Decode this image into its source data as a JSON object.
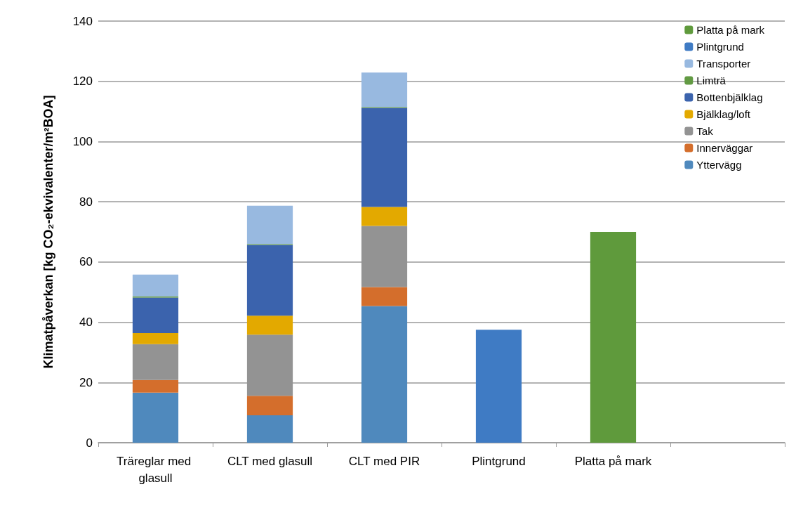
{
  "chart_data": {
    "type": "bar",
    "ylabel": "Klimatpåverkan [kg CO₂-ekvivalenter/m²BOA]",
    "categories": [
      "Träreglar med glasull",
      "CLT med glasull",
      "CLT med PIR",
      "Plintgrund",
      "Platta på mark",
      null
    ],
    "stacked": true,
    "ylim": [
      0,
      140
    ],
    "yticks": [
      0,
      20,
      40,
      60,
      80,
      100,
      120,
      140
    ],
    "grid": "y",
    "legend": "top right",
    "series": [
      {
        "name": "Yttervägg",
        "color": "#4f89bd",
        "values": [
          16.6,
          9.1,
          45.4,
          null,
          null,
          null
        ]
      },
      {
        "name": "Innerväggar",
        "color": "#d46e2c",
        "values": [
          4.2,
          6.5,
          6.3,
          null,
          null,
          null
        ]
      },
      {
        "name": "Tak",
        "color": "#939393",
        "values": [
          11.9,
          20.3,
          20.3,
          null,
          null,
          null
        ]
      },
      {
        "name": "Bjälklag/loft",
        "color": "#e3a900",
        "values": [
          3.7,
          6.3,
          6.3,
          null,
          null,
          null
        ]
      },
      {
        "name": "Bottenbjälklag",
        "color": "#3b63ad",
        "values": [
          11.8,
          23.5,
          32.9,
          null,
          null,
          null
        ]
      },
      {
        "name": "Limträ",
        "color": "#629a43",
        "values": [
          0.4,
          0.3,
          0.3,
          null,
          null,
          null
        ]
      },
      {
        "name": "Transporter",
        "color": "#98b9e0",
        "values": [
          7.2,
          12.7,
          11.4,
          null,
          null,
          null
        ]
      },
      {
        "name": "Plintgrund",
        "color": "#3f7bc4",
        "values": [
          null,
          null,
          null,
          37.5,
          null,
          null
        ]
      },
      {
        "name": "Platta på mark",
        "color": "#5f9a3c",
        "values": [
          null,
          null,
          null,
          null,
          70,
          null
        ]
      }
    ]
  }
}
